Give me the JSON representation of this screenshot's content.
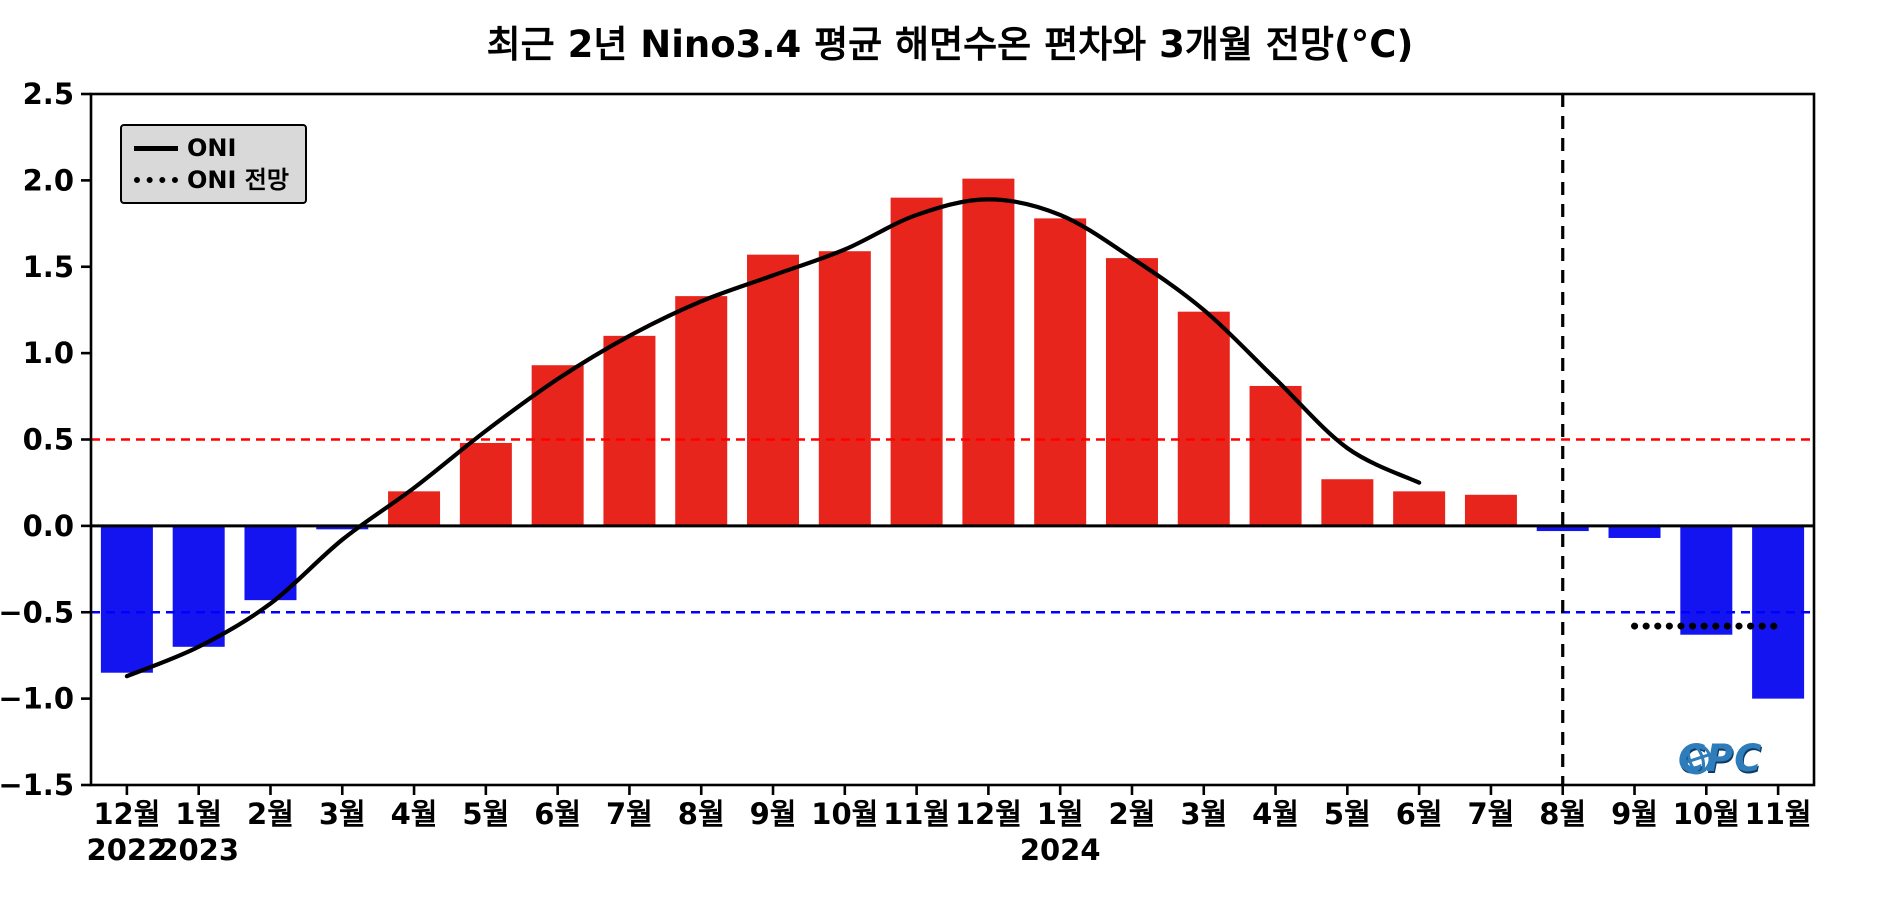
{
  "title": "최근 2년 Nino3.4 평균 해면수온 편차와 3개월 전망(°C)",
  "legend": {
    "oni_label": "ONI",
    "forecast_label": "ONI 전망"
  },
  "logo": {
    "text": "CPC"
  },
  "colors": {
    "positive_bar": "#e8251d",
    "negative_bar": "#1414f0",
    "elnino_threshold": "#ff0000",
    "lanina_threshold": "#0000ff",
    "logo_blue": "#2e7cba"
  },
  "chart_data": {
    "type": "bar",
    "title": "최근 2년 Nino3.4 평균 해면수온 편차와 3개월 전망(°C)",
    "categories": [
      "12월",
      "1월",
      "2월",
      "3월",
      "4월",
      "5월",
      "6월",
      "7월",
      "8월",
      "9월",
      "10월",
      "11월",
      "12월",
      "1월",
      "2월",
      "3월",
      "4월",
      "5월",
      "6월",
      "7월",
      "8월",
      "9월",
      "10월",
      "11월"
    ],
    "year_labels": [
      {
        "text": "2022",
        "category_index": 0
      },
      {
        "text": "2023",
        "category_index": 1
      },
      {
        "text": "2024",
        "category_index": 13
      }
    ],
    "values": [
      -0.85,
      -0.7,
      -0.43,
      -0.02,
      0.2,
      0.48,
      0.93,
      1.1,
      1.33,
      1.57,
      1.59,
      1.9,
      2.01,
      1.78,
      1.55,
      1.24,
      0.81,
      0.27,
      0.2,
      0.18,
      -0.03,
      -0.07,
      -0.63,
      -1.0
    ],
    "bar_color_positive": "#e8251d",
    "bar_color_negative": "#1414f0",
    "line_series": [
      {
        "name": "ONI",
        "style": "solid",
        "color": "#000000",
        "start_index": 0,
        "values": [
          -0.87,
          -0.7,
          -0.45,
          -0.08,
          0.22,
          0.55,
          0.85,
          1.1,
          1.3,
          1.45,
          1.6,
          1.8,
          1.89,
          1.8,
          1.55,
          1.25,
          0.85,
          0.45,
          0.25
        ]
      },
      {
        "name": "ONI 전망",
        "style": "dotted",
        "color": "#000000",
        "start_index": 21,
        "values": [
          -0.58,
          -0.58,
          -0.58
        ]
      }
    ],
    "reference_lines": [
      {
        "value": 0.5,
        "color": "#ff0000",
        "style": "dashed"
      },
      {
        "value": -0.5,
        "color": "#0000ff",
        "style": "dashed"
      },
      {
        "value": 0.0,
        "color": "#000000",
        "style": "solid"
      }
    ],
    "forecast_divider_index": 20,
    "ylim": [
      -1.5,
      2.5
    ],
    "yticks": [
      2.5,
      2.0,
      1.5,
      1.0,
      0.5,
      0.0,
      -0.5,
      -1.0,
      -1.5
    ]
  }
}
